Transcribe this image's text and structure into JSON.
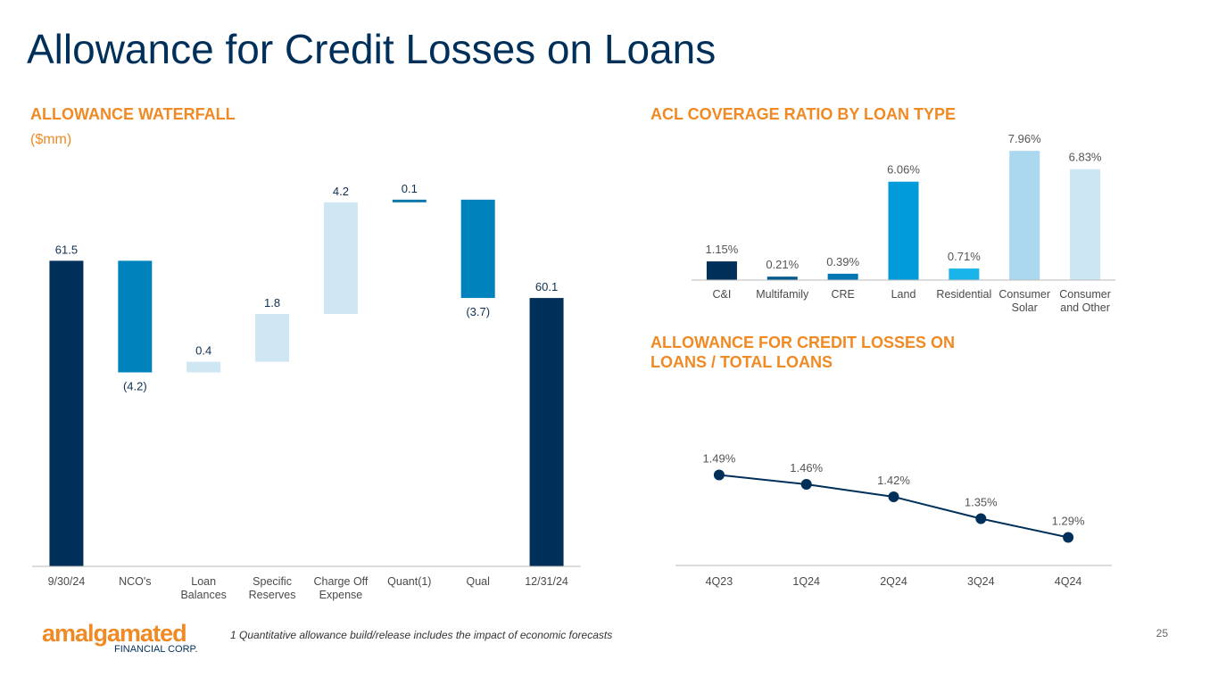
{
  "page": {
    "title": "Allowance for Credit Losses on Loans",
    "footnote": "1 Quantitative allowance build/release includes the impact of economic forecasts",
    "logo": "amalgamated",
    "logo_sub": "FINANCIAL CORP.",
    "page_number": "25"
  },
  "chart_data": [
    {
      "type": "waterfall",
      "title": "ALLOWANCE WATERFALL",
      "subtitle": "($mm)",
      "categories": [
        "9/30/24",
        "NCO's",
        "Loan\nBalances",
        "Specific\nReserves",
        "Charge Off\nExpense",
        "Quant(1)",
        "Qual",
        "12/31/24"
      ],
      "values": [
        61.5,
        -4.2,
        0.4,
        1.8,
        4.2,
        0.1,
        -3.7,
        60.1
      ],
      "value_labels": [
        "61.5",
        "(4.2)",
        "0.4",
        "1.8",
        "4.2",
        "0.1",
        "(3.7)",
        "60.1"
      ],
      "colors": [
        "#00305a",
        "#0083bd",
        "#cfe6f3",
        "#cfe6f3",
        "#cfe6f3",
        "#0a78a8",
        "#0083bd",
        "#00305a"
      ],
      "ylim": [
        50,
        64.5
      ]
    },
    {
      "type": "bar",
      "title": "ACL COVERAGE RATIO BY LOAN TYPE",
      "categories": [
        "C&I",
        "Multifamily",
        "CRE",
        "Land",
        "Residential",
        "Consumer\nSolar",
        "Consumer\nand Other"
      ],
      "values": [
        1.15,
        0.21,
        0.39,
        6.06,
        0.71,
        7.96,
        6.83
      ],
      "value_labels": [
        "1.15%",
        "0.21%",
        "0.39%",
        "6.06%",
        "0.71%",
        "7.96%",
        "6.83%"
      ],
      "colors": [
        "#00305a",
        "#005a8f",
        "#0077b3",
        "#009bd8",
        "#19b5ea",
        "#abd8ee",
        "#cde6f4"
      ],
      "ylim": [
        0,
        8
      ]
    },
    {
      "type": "line",
      "title": "ALLOWANCE FOR CREDIT LOSSES ON\nLOANS / TOTAL LOANS",
      "categories": [
        "4Q23",
        "1Q24",
        "2Q24",
        "3Q24",
        "4Q24"
      ],
      "values": [
        1.49,
        1.46,
        1.42,
        1.35,
        1.29
      ],
      "value_labels": [
        "1.49%",
        "1.46%",
        "1.42%",
        "1.35%",
        "1.29%"
      ],
      "color": "#00305a",
      "ylim": [
        1.2,
        1.6
      ]
    }
  ]
}
